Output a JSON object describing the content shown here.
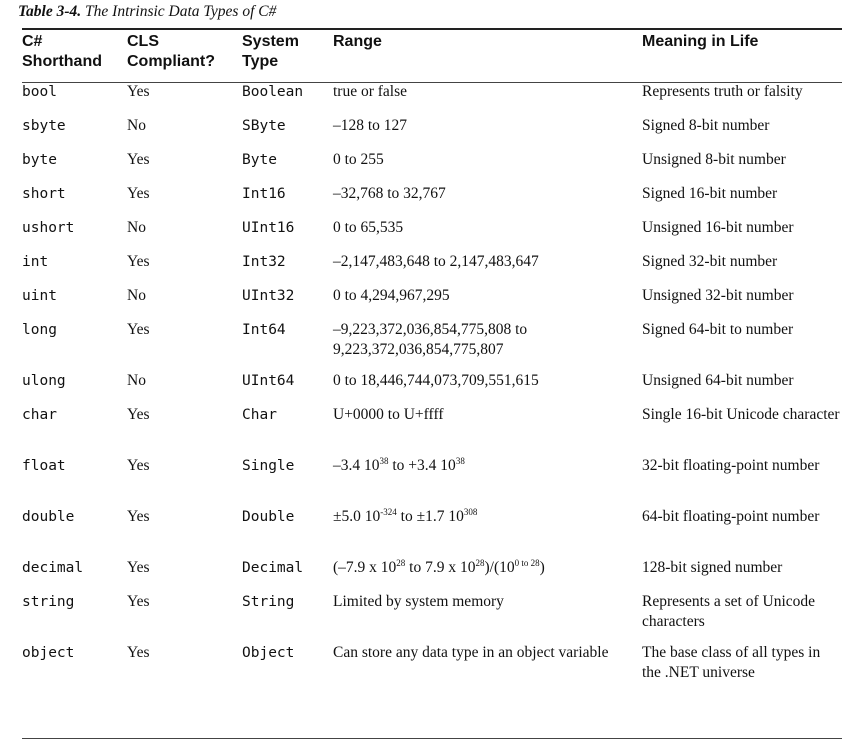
{
  "caption": {
    "number": "Table 3-4.",
    "title": "The Intrinsic Data Types of C#"
  },
  "headers": [
    "C# Shorthand",
    "CLS Compliant?",
    "System Type",
    "Range",
    "Meaning in Life"
  ],
  "header_lines": [
    [
      "C#",
      "Shorthand"
    ],
    [
      "CLS",
      "Compliant?"
    ],
    [
      "System",
      "Type"
    ],
    [
      "Range"
    ],
    [
      "Meaning in Life"
    ]
  ],
  "rows": [
    {
      "shorthand": "bool",
      "cls": "Yes",
      "system": "Boolean",
      "range": "true or false",
      "meaning": "Represents truth or falsity"
    },
    {
      "shorthand": "sbyte",
      "cls": "No",
      "system": "SByte",
      "range": "–128 to 127",
      "meaning": "Signed 8-bit number"
    },
    {
      "shorthand": "byte",
      "cls": "Yes",
      "system": "Byte",
      "range": "0 to 255",
      "meaning": "Unsigned 8-bit number"
    },
    {
      "shorthand": "short",
      "cls": "Yes",
      "system": "Int16",
      "range": "–32,768 to 32,767",
      "meaning": "Signed 16-bit number"
    },
    {
      "shorthand": "ushort",
      "cls": "No",
      "system": "UInt16",
      "range": "0 to 65,535",
      "meaning": "Unsigned 16-bit number"
    },
    {
      "shorthand": "int",
      "cls": "Yes",
      "system": "Int32",
      "range": "–2,147,483,648 to 2,147,483,647",
      "meaning": "Signed 32-bit number"
    },
    {
      "shorthand": "uint",
      "cls": "No",
      "system": "UInt32",
      "range": "0 to 4,294,967,295",
      "meaning": "Unsigned 32-bit number"
    },
    {
      "shorthand": "long",
      "cls": "Yes",
      "system": "Int64",
      "range": "–9,223,372,036,854,775,808 to 9,223,372,036,854,775,807",
      "meaning": "Signed 64-bit to number"
    },
    {
      "shorthand": "ulong",
      "cls": "No",
      "system": "UInt64",
      "range": "0 to 18,446,744,073,709,551,615",
      "meaning": "Unsigned 64-bit number"
    },
    {
      "shorthand": "char",
      "cls": "Yes",
      "system": "Char",
      "range": "U+0000 to U+ffff",
      "meaning": "Single 16-bit Unicode character"
    },
    {
      "shorthand": "float",
      "cls": "Yes",
      "system": "Single",
      "range": "–3.4 10^38 to +3.4 10^38",
      "meaning": "32-bit floating-point number"
    },
    {
      "shorthand": "double",
      "cls": "Yes",
      "system": "Double",
      "range": "±5.0 10^-324 to ±1.7 10^308",
      "meaning": "64-bit floating-point number"
    },
    {
      "shorthand": "decimal",
      "cls": "Yes",
      "system": "Decimal",
      "range": "(–7.9 x 10^28 to 7.9 x 10^28)/(10^0 to 28)",
      "meaning": "128-bit signed number"
    },
    {
      "shorthand": "string",
      "cls": "Yes",
      "system": "String",
      "range": "Limited by system memory",
      "meaning": "Represents a set of Unicode characters"
    },
    {
      "shorthand": "object",
      "cls": "Yes",
      "system": "Object",
      "range": "Can store any data type in an object variable",
      "meaning": "The base class of all types in the .NET universe"
    }
  ]
}
